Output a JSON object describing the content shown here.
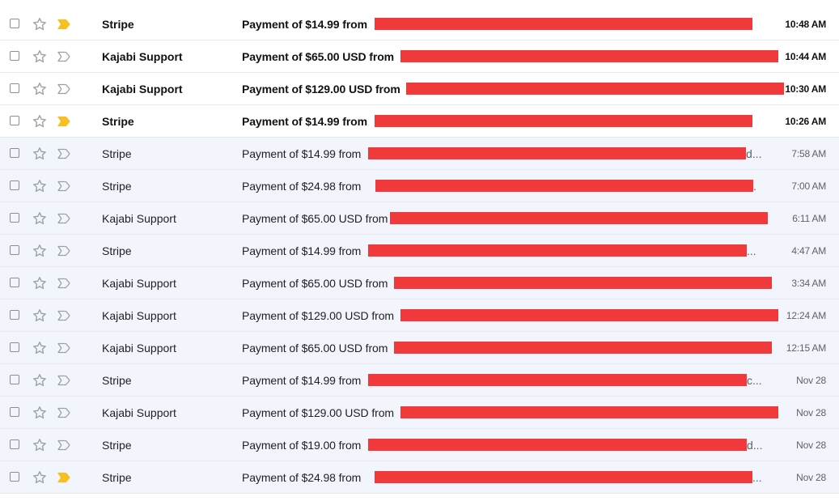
{
  "colors": {
    "unread_background": "#ffffff",
    "read_background": "#f2f6fc",
    "redaction": "#f0393a",
    "important_marker": "#f6bf26"
  },
  "emails": [
    {
      "sender": "Stripe",
      "subject": "Payment of $14.99 from",
      "time": "10:48 AM",
      "unread": true,
      "important": true,
      "tail": ""
    },
    {
      "sender": "Kajabi Support",
      "subject": "Payment of $65.00 USD from",
      "time": "10:44 AM",
      "unread": true,
      "important": false,
      "tail": ""
    },
    {
      "sender": "Kajabi Support",
      "subject": "Payment of $129.00 USD from",
      "time": "10:30 AM",
      "unread": true,
      "important": false,
      "tail": ""
    },
    {
      "sender": "Stripe",
      "subject": "Payment of $14.99 from",
      "time": "10:26 AM",
      "unread": true,
      "important": true,
      "tail": ""
    },
    {
      "sender": "Stripe",
      "subject": "Payment of $14.99 from",
      "time": "7:58 AM",
      "unread": false,
      "important": false,
      "tail": "d..."
    },
    {
      "sender": "Stripe",
      "subject": "Payment of $24.98 from",
      "time": "7:00 AM",
      "unread": false,
      "important": false,
      "tail": "."
    },
    {
      "sender": "Kajabi Support",
      "subject": "Payment of $65.00 USD from",
      "time": "6:11 AM",
      "unread": false,
      "important": false,
      "tail": ""
    },
    {
      "sender": "Stripe",
      "subject": "Payment of $14.99 from",
      "time": "4:47 AM",
      "unread": false,
      "important": false,
      "tail": "..."
    },
    {
      "sender": "Kajabi Support",
      "subject": "Payment of $65.00 USD from",
      "time": "3:34 AM",
      "unread": false,
      "important": false,
      "tail": ""
    },
    {
      "sender": "Kajabi Support",
      "subject": "Payment of $129.00 USD from",
      "time": "12:24 AM",
      "unread": false,
      "important": false,
      "tail": ""
    },
    {
      "sender": "Kajabi Support",
      "subject": "Payment of $65.00 USD from",
      "time": "12:15 AM",
      "unread": false,
      "important": false,
      "tail": ""
    },
    {
      "sender": "Stripe",
      "subject": "Payment of $14.99 from",
      "time": "Nov 28",
      "unread": false,
      "important": false,
      "tail": "c..."
    },
    {
      "sender": "Kajabi Support",
      "subject": "Payment of $129.00 USD from",
      "time": "Nov 28",
      "unread": false,
      "important": false,
      "tail": ""
    },
    {
      "sender": "Stripe",
      "subject": "Payment of $19.00 from",
      "time": "Nov 28",
      "unread": false,
      "important": false,
      "tail": "d..."
    },
    {
      "sender": "Stripe",
      "subject": "Payment of $24.98 from",
      "time": "Nov 28",
      "unread": false,
      "important": true,
      "tail": "..."
    }
  ]
}
